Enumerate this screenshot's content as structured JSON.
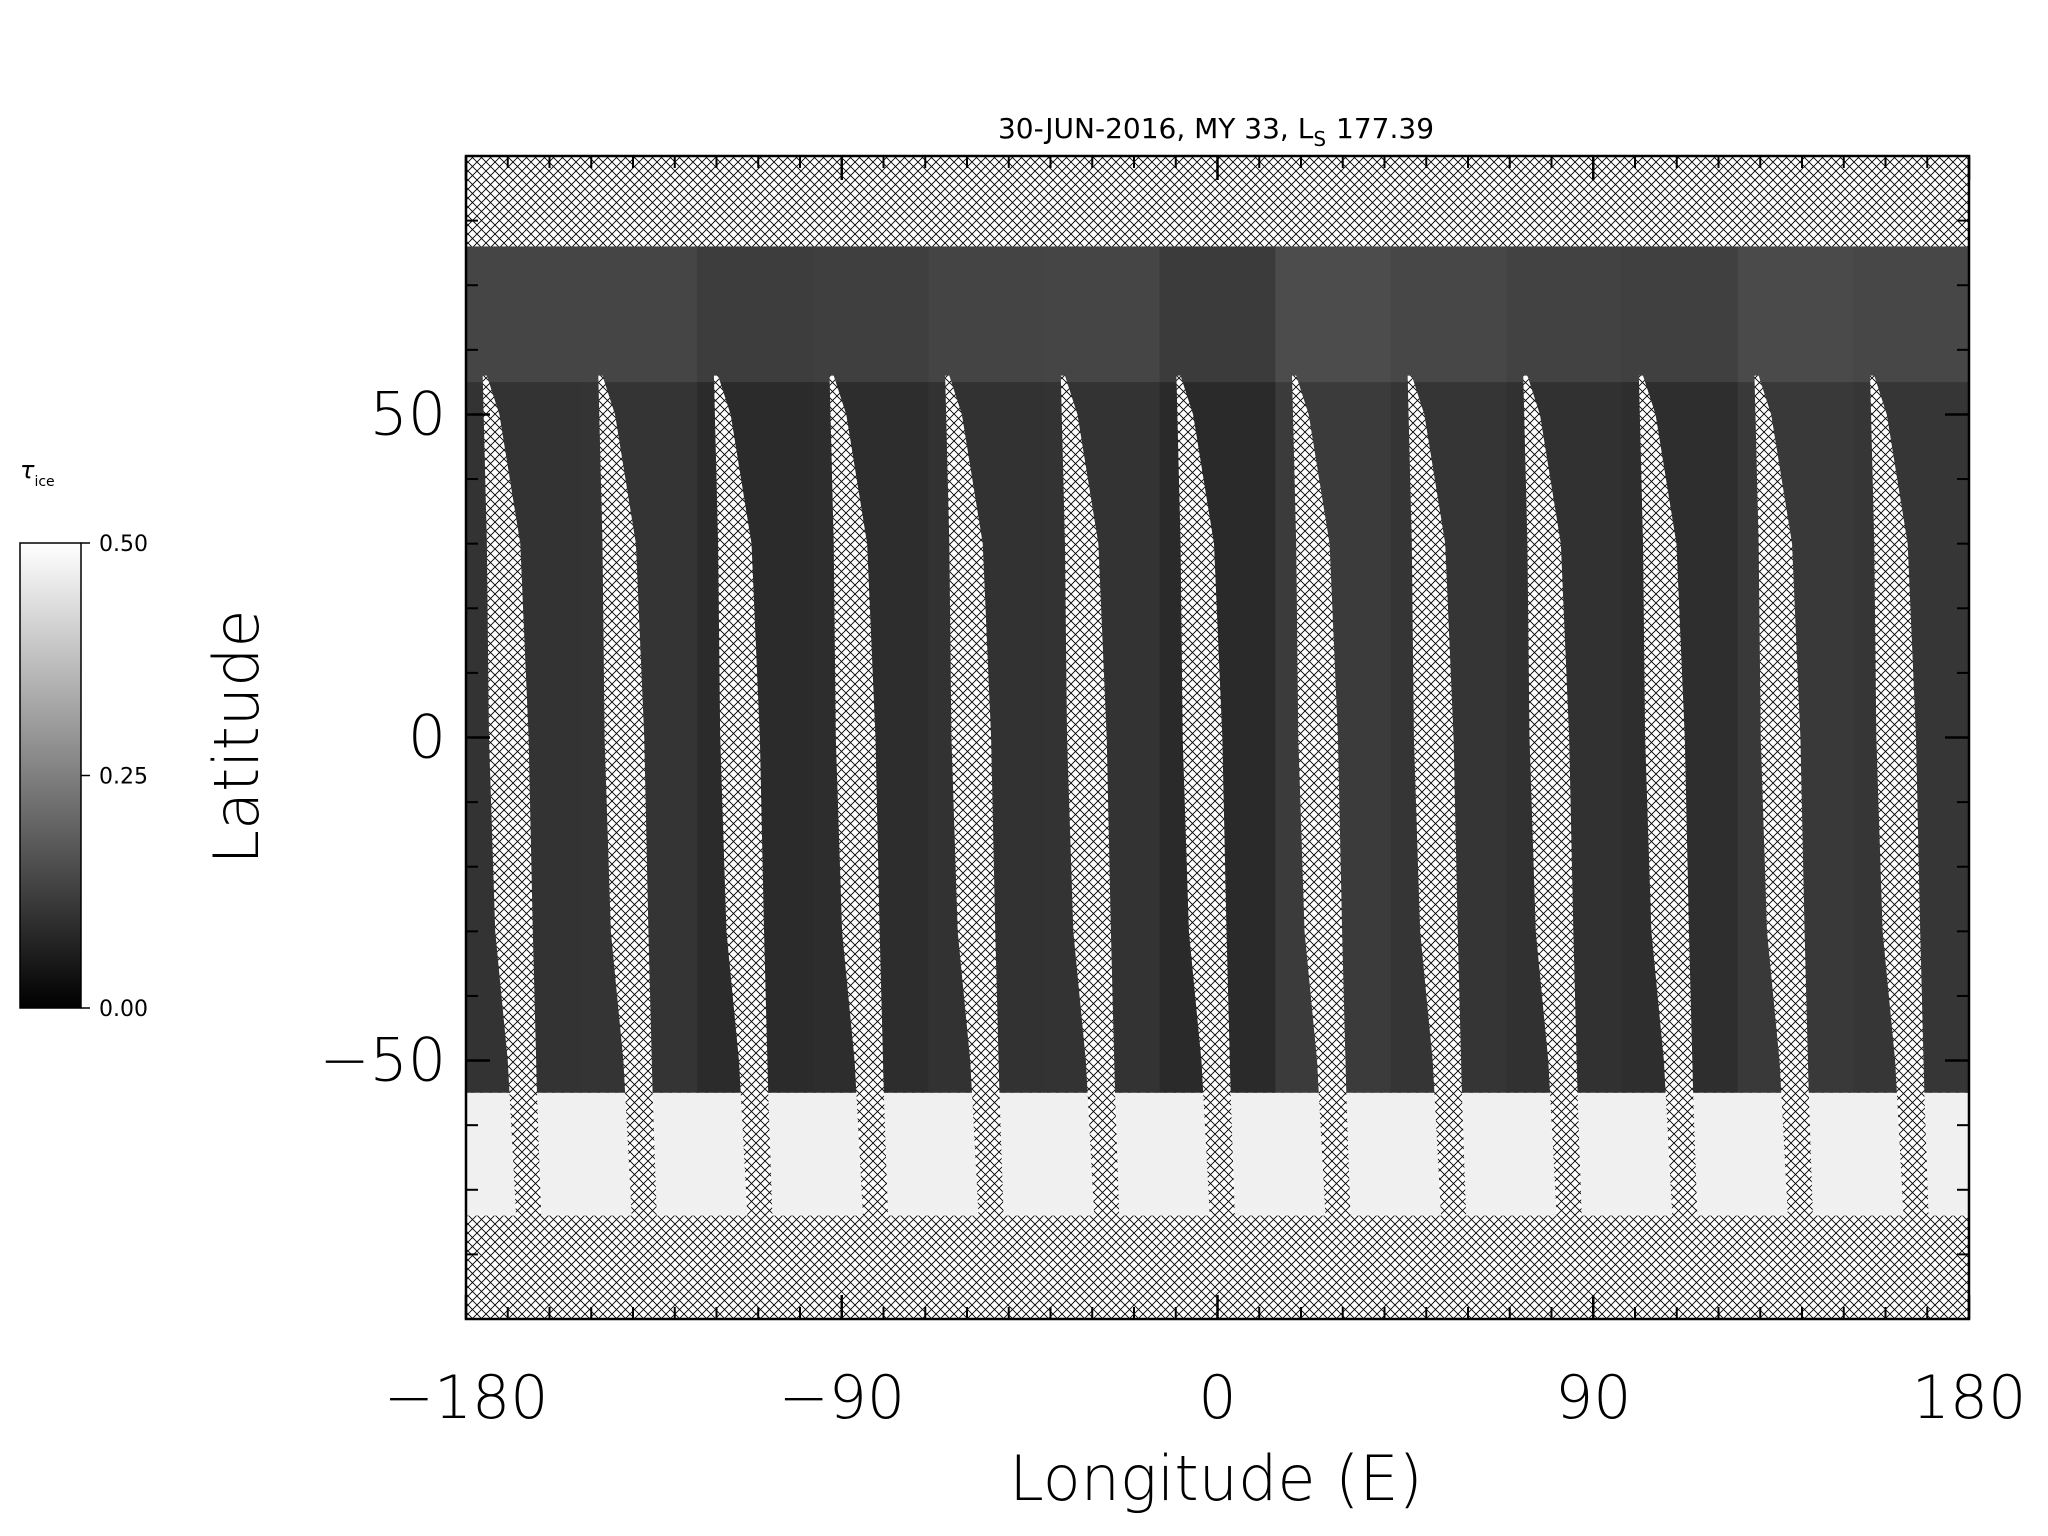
{
  "chart_data": {
    "type": "map",
    "title": {
      "text": "30-JUN-2016, MY 33,  L",
      "subscript": "S",
      "suffix": "177.39"
    },
    "xlabel": "Longitude (E)",
    "ylabel": "Latitude",
    "xlim": [
      -180,
      180
    ],
    "ylim": [
      -90,
      90
    ],
    "xticks": [
      {
        "value": -180,
        "label": "−180"
      },
      {
        "value": -90,
        "label": "−90"
      },
      0,
      90,
      180
    ],
    "yticks": [
      {
        "value": -50,
        "label": "−50"
      },
      0,
      50
    ],
    "colorbar": {
      "label": "τ",
      "label_subscript": "ice",
      "lim": [
        0,
        0.5
      ],
      "ticks": [
        {
          "value": 0,
          "label": "0.00"
        },
        {
          "value": 0.25,
          "label": "0.25"
        },
        {
          "value": 0.5,
          "label": "0.50"
        }
      ],
      "colors": [
        "#000000",
        "#ffffff"
      ]
    }
  }
}
